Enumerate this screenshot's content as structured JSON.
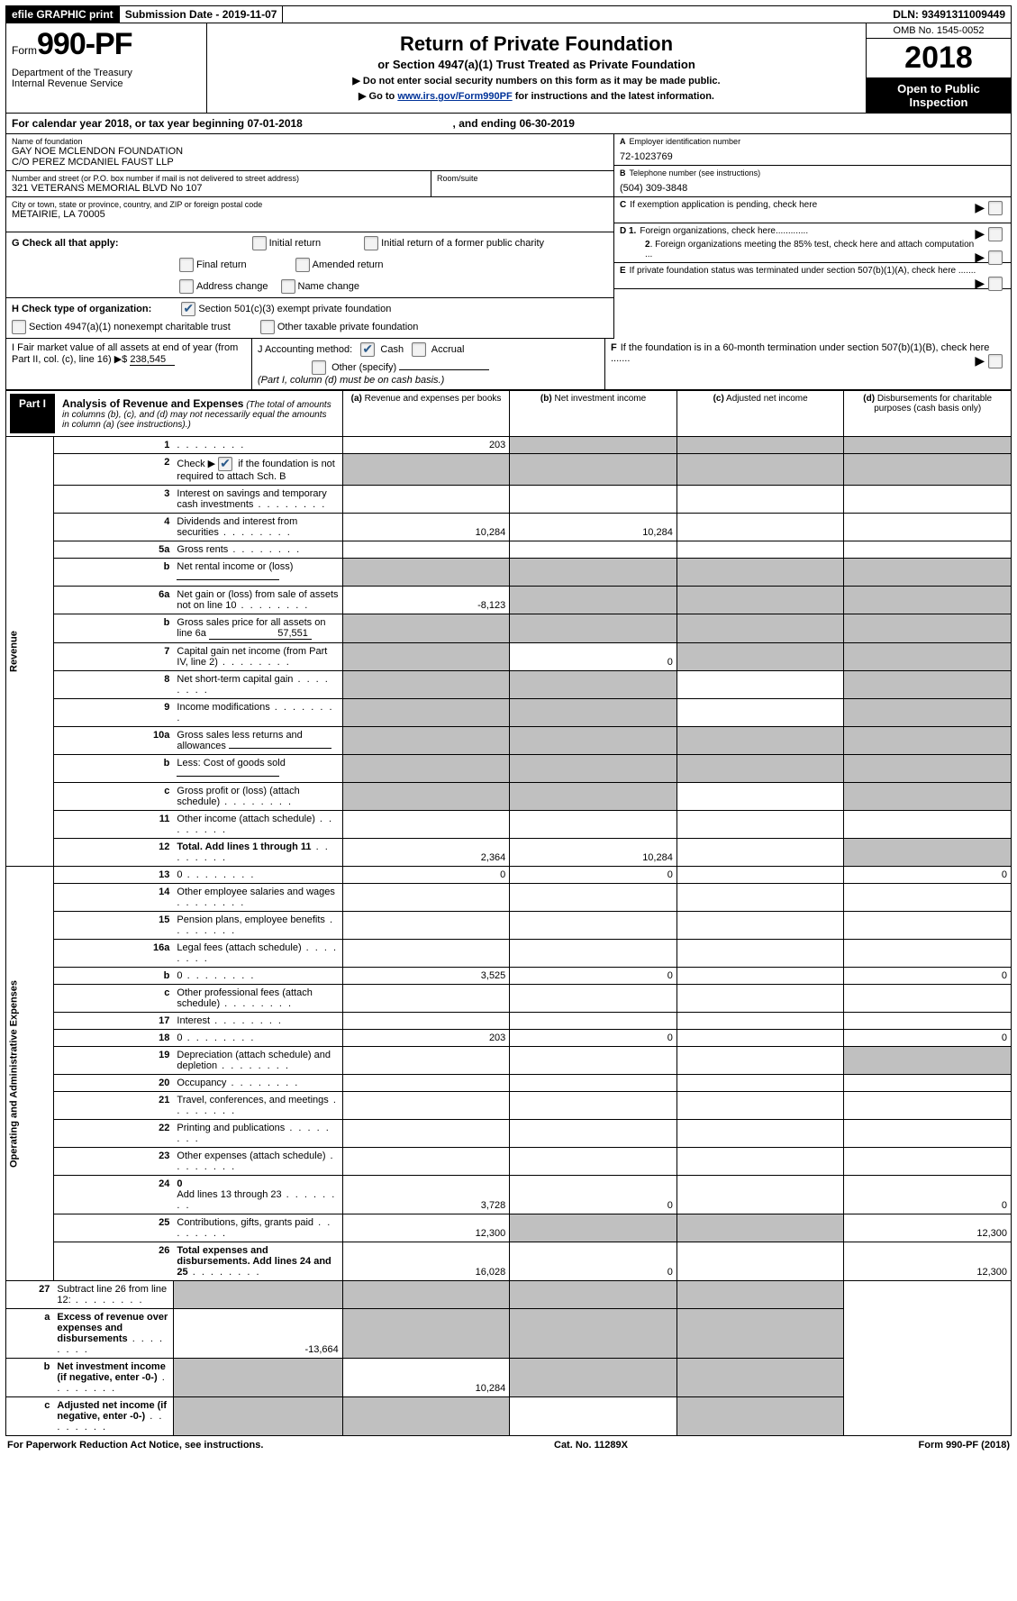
{
  "topbar": {
    "efile": "efile GRAPHIC print",
    "subdate_label": "Submission Date - ",
    "subdate": "2019-11-07",
    "dln_label": "DLN: ",
    "dln": "93491311009449"
  },
  "header": {
    "form_prefix": "Form",
    "form_number": "990-PF",
    "dept": "Department of the Treasury\nInternal Revenue Service",
    "title": "Return of Private Foundation",
    "subtitle": "or Section 4947(a)(1) Trust Treated as Private Foundation",
    "warn": "▶ Do not enter social security numbers on this form as it may be made public.",
    "goto_pre": "▶ Go to ",
    "goto_link": "www.irs.gov/Form990PF",
    "goto_post": " for instructions and the latest information.",
    "omb": "OMB No. 1545-0052",
    "year": "2018",
    "open": "Open to Public Inspection"
  },
  "calyear": {
    "pre": "For calendar year 2018, or tax year beginning ",
    "begin": "07-01-2018",
    "mid": " , and ending ",
    "end": "06-30-2019"
  },
  "name": {
    "lbl": "Name of foundation",
    "line1": "GAY NOE MCLENDON FOUNDATION",
    "line2": "C/O PEREZ MCDANIEL FAUST LLP"
  },
  "ein": {
    "lbl": "A Employer identification number",
    "val": "72-1023769"
  },
  "addr": {
    "lbl": "Number and street (or P.O. box number if mail is not delivered to street address)",
    "val": "321 VETERANS MEMORIAL BLVD No 107",
    "room_lbl": "Room/suite"
  },
  "phone": {
    "lbl": "B Telephone number (see instructions)",
    "val": "(504) 309-3848"
  },
  "city": {
    "lbl": "City or town, state or province, country, and ZIP or foreign postal code",
    "val": "METAIRIE, LA  70005"
  },
  "c_exempt": "If exemption application is pending, check here",
  "g": {
    "lead": "G Check all that apply:",
    "opts": [
      "Initial return",
      "Initial return of a former public charity",
      "Final return",
      "Amended return",
      "Address change",
      "Name change"
    ]
  },
  "d": {
    "d1": "Foreign organizations, check here.............",
    "d2": "Foreign organizations meeting the 85% test, check here and attach computation ..."
  },
  "h": {
    "lead": "H Check type of organization:",
    "opts": [
      "Section 501(c)(3) exempt private foundation",
      "Section 4947(a)(1) nonexempt charitable trust",
      "Other taxable private foundation"
    ]
  },
  "e_text": "If private foundation status was terminated under section 507(b)(1)(A), check here .......",
  "i": {
    "text": "I Fair market value of all assets at end of year (from Part II, col. (c), line 16)  ▶$ ",
    "val": "238,545"
  },
  "j": {
    "text": "J Accounting method:",
    "cash": "Cash",
    "accrual": "Accrual",
    "other": "Other (specify)",
    "note": "(Part I, column (d) must be on cash basis.)"
  },
  "f_text": "If the foundation is in a 60-month termination under section 507(b)(1)(B), check here .......",
  "part1": {
    "label": "Part I",
    "title": "Analysis of Revenue and Expenses",
    "note": "(The total of amounts in columns (b), (c), and (d) may not necessarily equal the amounts in column (a) (see instructions).)"
  },
  "cols": {
    "a": "Revenue and expenses per books",
    "b": "Net investment income",
    "c": "Adjusted net income",
    "d": "Disbursements for charitable purposes (cash basis only)"
  },
  "sections": {
    "revenue": "Revenue",
    "expenses": "Operating and Administrative Expenses"
  },
  "rows": {
    "r1": {
      "n": "1",
      "d": "",
      "a": "203",
      "b": "",
      "c": "",
      "ga": false,
      "gb": true,
      "gc": true,
      "gd": true
    },
    "r2": {
      "n": "2",
      "d": "Check ▶",
      "d2": " if the foundation is not required to attach Sch. B",
      "chk": true,
      "ga": true,
      "gb": true,
      "gc": true,
      "gd": true
    },
    "r3": {
      "n": "3",
      "d": "Interest on savings and temporary cash investments"
    },
    "r4": {
      "n": "4",
      "d": "Dividends and interest from securities",
      "a": "10,284",
      "b": "10,284"
    },
    "r5a": {
      "n": "5a",
      "d": "Gross rents"
    },
    "r5b": {
      "n": "b",
      "d": "Net rental income or (loss)",
      "inline": true,
      "ga": true,
      "gb": true,
      "gc": true,
      "gd": true
    },
    "r6a": {
      "n": "6a",
      "d": "Net gain or (loss) from sale of assets not on line 10",
      "a": "-8,123",
      "gb": true,
      "gc": true,
      "gd": true
    },
    "r6b": {
      "n": "b",
      "d": "Gross sales price for all assets on line 6a",
      "inline_val": "57,551",
      "ga": true,
      "gb": true,
      "gc": true,
      "gd": true
    },
    "r7": {
      "n": "7",
      "d": "Capital gain net income (from Part IV, line 2)",
      "b": "0",
      "ga": true,
      "gc": true,
      "gd": true
    },
    "r8": {
      "n": "8",
      "d": "Net short-term capital gain",
      "ga": true,
      "gb": true,
      "gd": true
    },
    "r9": {
      "n": "9",
      "d": "Income modifications",
      "ga": true,
      "gb": true,
      "gd": true
    },
    "r10a": {
      "n": "10a",
      "d": "Gross sales less returns and allowances",
      "inline": true,
      "ga": true,
      "gb": true,
      "gc": true,
      "gd": true
    },
    "r10b": {
      "n": "b",
      "d": "Less: Cost of goods sold",
      "inline": true,
      "ga": true,
      "gb": true,
      "gc": true,
      "gd": true
    },
    "r10c": {
      "n": "c",
      "d": "Gross profit or (loss) (attach schedule)",
      "ga": true,
      "gb": true,
      "gd": true
    },
    "r11": {
      "n": "11",
      "d": "Other income (attach schedule)"
    },
    "r12": {
      "n": "12",
      "d": "Total. Add lines 1 through 11",
      "bold": true,
      "a": "2,364",
      "b": "10,284",
      "gd": true
    },
    "r13": {
      "n": "13",
      "d": "0",
      "a": "0",
      "b": "0"
    },
    "r14": {
      "n": "14",
      "d": "Other employee salaries and wages"
    },
    "r15": {
      "n": "15",
      "d": "Pension plans, employee benefits"
    },
    "r16a": {
      "n": "16a",
      "d": "Legal fees (attach schedule)"
    },
    "r16b": {
      "n": "b",
      "d": "0",
      "a": "3,525",
      "b": "0"
    },
    "r16c": {
      "n": "c",
      "d": "Other professional fees (attach schedule)"
    },
    "r17": {
      "n": "17",
      "d": "Interest"
    },
    "r18": {
      "n": "18",
      "d": "0",
      "a": "203",
      "b": "0"
    },
    "r19": {
      "n": "19",
      "d": "Depreciation (attach schedule) and depletion",
      "gd": true
    },
    "r20": {
      "n": "20",
      "d": "Occupancy"
    },
    "r21": {
      "n": "21",
      "d": "Travel, conferences, and meetings"
    },
    "r22": {
      "n": "22",
      "d": "Printing and publications"
    },
    "r23": {
      "n": "23",
      "d": "Other expenses (attach schedule)"
    },
    "r24": {
      "n": "24",
      "d": "0",
      "bold": true,
      "d2": "Add lines 13 through 23",
      "a": "3,728",
      "b": "0"
    },
    "r25": {
      "n": "25",
      "d": "Contributions, gifts, grants paid",
      "a": "12,300",
      "gb": true,
      "gc": true,
      "dd": "12,300"
    },
    "r26": {
      "n": "26",
      "d": "Total expenses and disbursements. Add lines 24 and 25",
      "bold": true,
      "a": "16,028",
      "b": "0",
      "dd": "12,300"
    },
    "r27": {
      "n": "27",
      "d": "Subtract line 26 from line 12:",
      "ga": true,
      "gb": true,
      "gc": true,
      "gd": true
    },
    "r27a": {
      "n": "a",
      "d": "Excess of revenue over expenses and disbursements",
      "bold": true,
      "a": "-13,664",
      "gb": true,
      "gc": true,
      "gd": true
    },
    "r27b": {
      "n": "b",
      "d": "Net investment income (if negative, enter -0-)",
      "bold": true,
      "b": "10,284",
      "ga": true,
      "gc": true,
      "gd": true
    },
    "r27c": {
      "n": "c",
      "d": "Adjusted net income (if negative, enter -0-)",
      "bold": true,
      "ga": true,
      "gb": true,
      "gd": true
    }
  },
  "footer": {
    "left": "For Paperwork Reduction Act Notice, see instructions.",
    "mid": "Cat. No. 11289X",
    "right": "Form 990-PF (2018)"
  }
}
